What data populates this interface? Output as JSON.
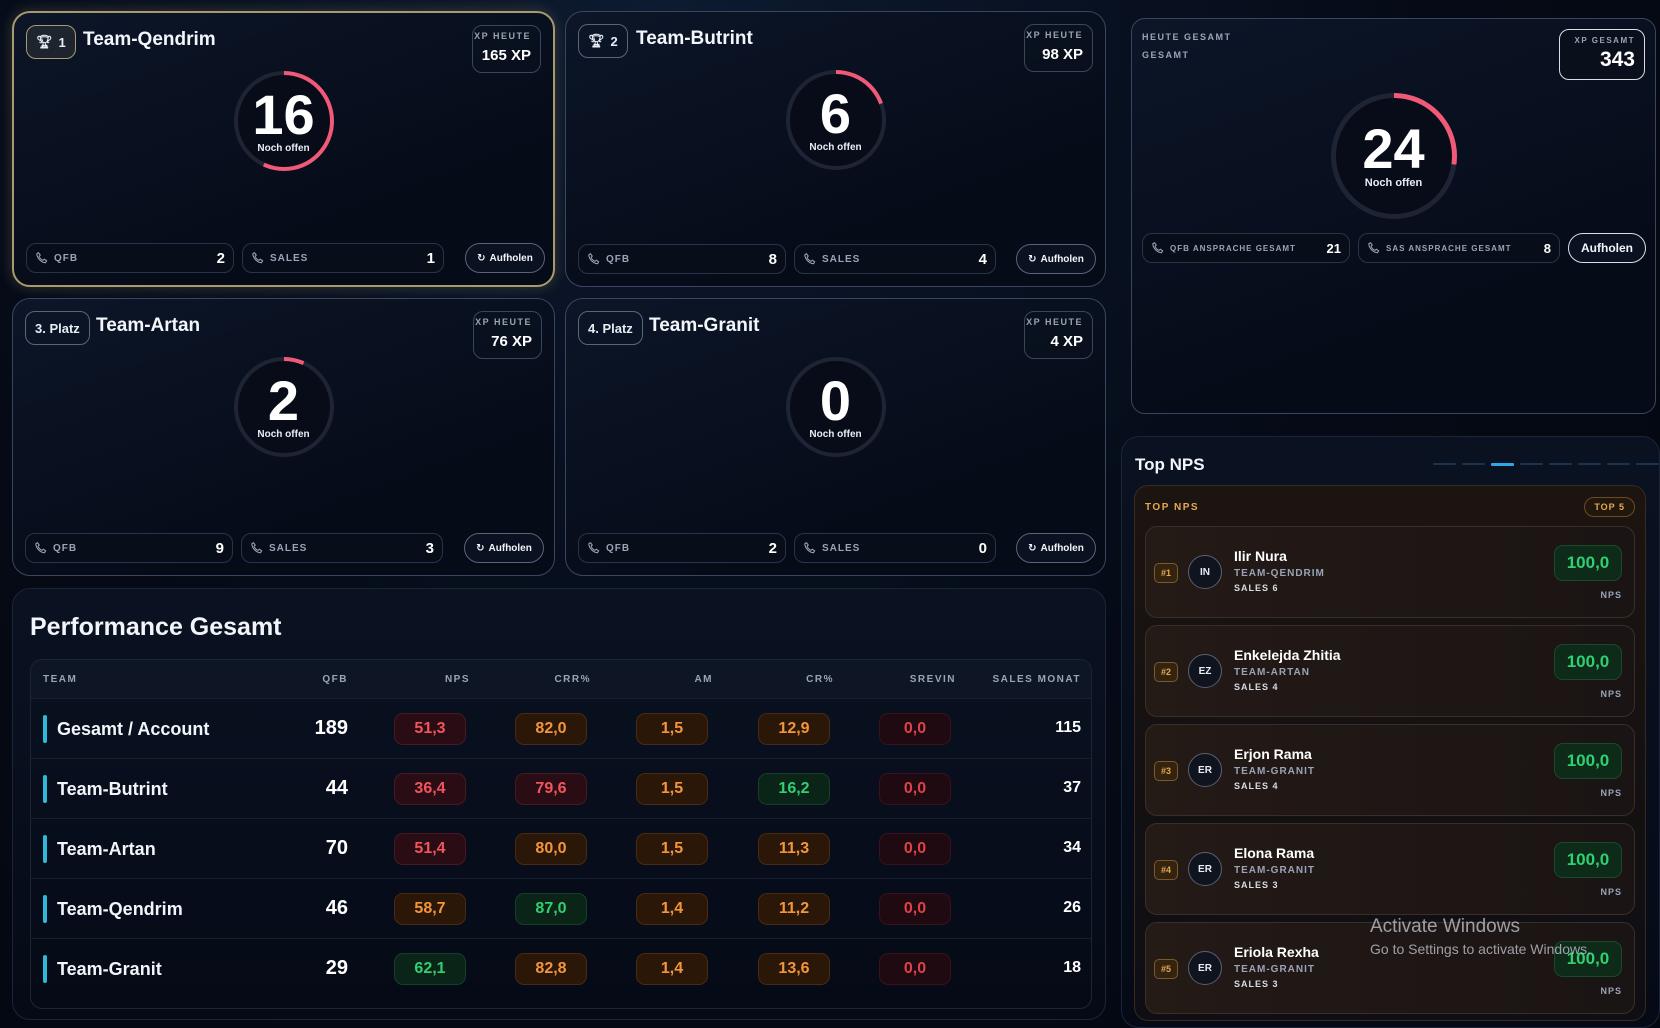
{
  "teams": [
    {
      "rank": "1",
      "name": "Team-Qendrim",
      "xp_label": "XP HEUTE",
      "xp": "165 XP",
      "open": "16",
      "open_label": "Noch offen",
      "qfb_label": "QFB",
      "qfb": "2",
      "sales_label": "SALES",
      "sales": "1",
      "btn": "Aufholen"
    },
    {
      "rank": "2",
      "name": "Team-Butrint",
      "xp_label": "XP HEUTE",
      "xp": "98 XP",
      "open": "6",
      "open_label": "Noch offen",
      "qfb_label": "QFB",
      "qfb": "8",
      "sales_label": "SALES",
      "sales": "4",
      "btn": "Aufholen"
    },
    {
      "rank": "3. Platz",
      "name": "Team-Artan",
      "xp_label": "XP HEUTE",
      "xp": "76 XP",
      "open": "2",
      "open_label": "Noch offen",
      "qfb_label": "QFB",
      "qfb": "9",
      "sales_label": "SALES",
      "sales": "3",
      "btn": "Aufholen"
    },
    {
      "rank": "4. Platz",
      "name": "Team-Granit",
      "xp_label": "XP HEUTE",
      "xp": "4 XP",
      "open": "0",
      "open_label": "Noch offen",
      "qfb_label": "QFB",
      "qfb": "2",
      "sales_label": "SALES",
      "sales": "0",
      "btn": "Aufholen"
    }
  ],
  "summary": {
    "label1": "HEUTE GESAMT",
    "label2": "GESAMT",
    "xp_label": "XP GESAMT",
    "xp": "343",
    "open": "24",
    "open_label": "Noch offen",
    "qfb_label": "QFB ANSPRACHE GESAMT",
    "qfb": "21",
    "sas_label": "SAS ANSPRACHE GESAMT",
    "sas": "8",
    "btn": "Aufholen"
  },
  "performance": {
    "title": "Performance Gesamt",
    "headers": [
      "TEAM",
      "QFB",
      "NPS",
      "CRR%",
      "AM",
      "CR%",
      "SREVIN",
      "SALES MONAT"
    ],
    "rows": [
      {
        "team": "Gesamt / Account",
        "qfb": "189",
        "nps": "51,3",
        "crr": "82,0",
        "am": "1,5",
        "cr": "12,9",
        "srevin": "0,0",
        "sales": "115"
      },
      {
        "team": "Team-Butrint",
        "qfb": "44",
        "nps": "36,4",
        "crr": "79,6",
        "am": "1,5",
        "cr": "16,2",
        "srevin": "0,0",
        "sales": "37"
      },
      {
        "team": "Team-Artan",
        "qfb": "70",
        "nps": "51,4",
        "crr": "80,0",
        "am": "1,5",
        "cr": "11,3",
        "srevin": "0,0",
        "sales": "34"
      },
      {
        "team": "Team-Qendrim",
        "qfb": "46",
        "nps": "58,7",
        "crr": "87,0",
        "am": "1,4",
        "cr": "11,2",
        "srevin": "0,0",
        "sales": "26"
      },
      {
        "team": "Team-Granit",
        "qfb": "29",
        "nps": "62,1",
        "crr": "82,8",
        "am": "1,4",
        "cr": "13,6",
        "srevin": "0,0",
        "sales": "18"
      }
    ]
  },
  "nps": {
    "title": "Top NPS",
    "inner_label": "TOP NPS",
    "badge": "TOP 5",
    "items": [
      {
        "rank": "#1",
        "initials": "IN",
        "name": "Ilir Nura",
        "team": "TEAM-QENDRIM",
        "sales": "SALES 6",
        "value": "100,0",
        "label": "NPS"
      },
      {
        "rank": "#2",
        "initials": "EZ",
        "name": "Enkelejda Zhitia",
        "team": "TEAM-ARTAN",
        "sales": "SALES 4",
        "value": "100,0",
        "label": "NPS"
      },
      {
        "rank": "#3",
        "initials": "ER",
        "name": "Erjon Rama",
        "team": "TEAM-GRANIT",
        "sales": "SALES 4",
        "value": "100,0",
        "label": "NPS"
      },
      {
        "rank": "#4",
        "initials": "ER",
        "name": "Elona Rama",
        "team": "TEAM-GRANIT",
        "sales": "SALES 3",
        "value": "100,0",
        "label": "NPS"
      },
      {
        "rank": "#5",
        "initials": "ER",
        "name": "Eriola Rexha",
        "team": "TEAM-GRANIT",
        "sales": "SALES 3",
        "value": "100,0",
        "label": "NPS"
      }
    ]
  },
  "watermark": {
    "line1": "Activate Windows",
    "line2": "Go to Settings to activate Windows."
  }
}
